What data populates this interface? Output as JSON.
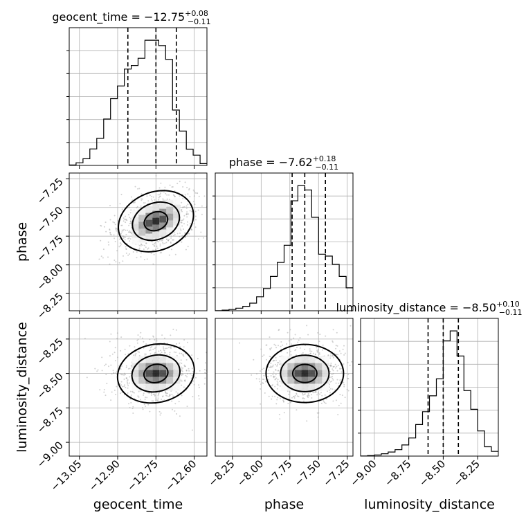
{
  "chart_data": {
    "type": "corner",
    "parameters": [
      "geocent_time",
      "phase",
      "luminosity_distance"
    ],
    "axis_labels": [
      "geocent_time",
      "phase",
      "luminosity_distance"
    ],
    "ranges": [
      [
        -13.09,
        -12.55
      ],
      [
        -8.4,
        -7.2
      ],
      [
        -9.1,
        -8.1
      ]
    ],
    "ticks": [
      [
        "−13.05",
        "−12.90",
        "−12.75",
        "−12.60"
      ],
      [
        "−8.25",
        "−8.00",
        "−7.75",
        "−7.50",
        "−7.25"
      ],
      [
        "−9.00",
        "−8.75",
        "−8.50",
        "−8.25"
      ]
    ],
    "tick_values": [
      [
        -13.05,
        -12.9,
        -12.75,
        -12.6
      ],
      [
        -8.25,
        -8.0,
        -7.75,
        -7.5,
        -7.25
      ],
      [
        -9.0,
        -8.75,
        -8.5,
        -8.25
      ]
    ],
    "titles": [
      {
        "prefix": "geocent_time = −12.75",
        "plus": "+0.08",
        "minus": "−0.11"
      },
      {
        "prefix": "phase = −7.62",
        "plus": "+0.18",
        "minus": "−0.11"
      },
      {
        "prefix": "luminosity_distance = −8.50",
        "plus": "+0.10",
        "minus": "−0.11"
      }
    ],
    "quantiles": [
      [
        -12.86,
        -12.75,
        -12.67
      ],
      [
        -7.73,
        -7.62,
        -7.44
      ],
      [
        -8.61,
        -8.5,
        -8.39
      ]
    ],
    "histograms": [
      [
        0.4,
        2.2,
        5.5,
        13.7,
        22.5,
        38.5,
        55.5,
        66.0,
        80.0,
        83.0,
        89.0,
        104.0,
        104.0,
        99.5,
        88.0,
        46.0,
        28.5,
        13.5,
        8.5,
        1.5
      ],
      [
        0.1,
        0.5,
        1.0,
        2.0,
        3.5,
        6.0,
        11.0,
        17.5,
        27.0,
        38.0,
        51.5,
        86.5,
        98.5,
        95.0,
        73.5,
        44.5,
        43.0,
        36.5,
        27.0,
        18.0
      ],
      [
        0.1,
        0.5,
        1.0,
        2.0,
        3.5,
        5.5,
        9.5,
        15.5,
        27.0,
        38.0,
        51.5,
        66.0,
        98.5,
        107.0,
        85.5,
        56.0,
        40.0,
        21.5,
        8.0,
        4.0
      ]
    ],
    "centers": [
      [
        -12.755,
        -7.635,
        -8.505
      ]
    ],
    "grid": true,
    "contour_levels": 3
  }
}
